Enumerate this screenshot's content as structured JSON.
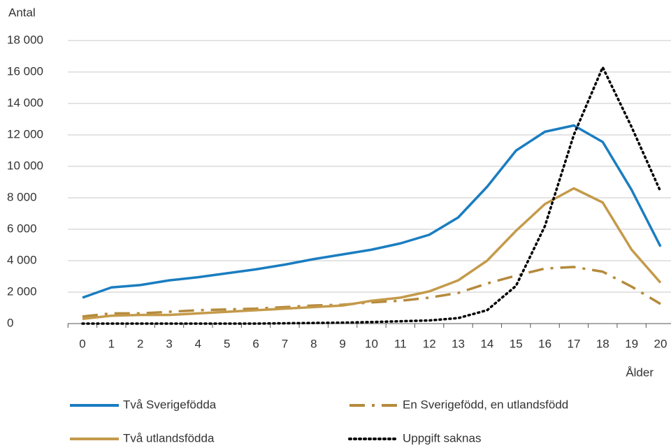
{
  "chart_data": {
    "type": "line",
    "ylabel": "Antal",
    "xlabel": "Ålder",
    "x": [
      0,
      1,
      2,
      3,
      4,
      5,
      6,
      7,
      8,
      9,
      10,
      11,
      12,
      13,
      14,
      15,
      16,
      17,
      18,
      19,
      20
    ],
    "xlim": [
      0,
      20
    ],
    "ylim": [
      0,
      18000
    ],
    "yticks": [
      0,
      {
        "value": 2000,
        "label": "2 000"
      },
      {
        "value": 4000,
        "label": "4 000"
      },
      {
        "value": 6000,
        "label": "6 000"
      },
      {
        "value": 8000,
        "label": "8 000"
      },
      {
        "value": 10000,
        "label": "10 000"
      },
      {
        "value": 12000,
        "label": "12 000"
      },
      {
        "value": 14000,
        "label": "14 000"
      },
      {
        "value": 16000,
        "label": "16 000"
      },
      {
        "value": 18000,
        "label": "18 000"
      }
    ],
    "grid": true,
    "legend": "bottom",
    "series": [
      {
        "name": "Två Sverigefödda",
        "color": "#1a7dc0",
        "style": "solid",
        "values": [
          1650,
          2300,
          2450,
          2750,
          2950,
          3200,
          3450,
          3750,
          4100,
          4400,
          4700,
          5100,
          5650,
          6750,
          8700,
          11000,
          12200,
          12600,
          11550,
          8500,
          4900
        ]
      },
      {
        "name": "En Sverigefödd, en utlandsfödd",
        "color": "#b58a3c",
        "style": "dashdot",
        "values": [
          450,
          650,
          650,
          750,
          850,
          900,
          950,
          1050,
          1150,
          1200,
          1350,
          1450,
          1650,
          1950,
          2550,
          3050,
          3500,
          3600,
          3300,
          2350,
          1250
        ]
      },
      {
        "name": "Två utlandsfödda",
        "color": "#c49a4a",
        "style": "solid",
        "values": [
          300,
          500,
          550,
          550,
          650,
          750,
          850,
          950,
          1050,
          1150,
          1450,
          1650,
          2050,
          2750,
          4000,
          5900,
          7600,
          8600,
          7700,
          4700,
          2600
        ]
      },
      {
        "name": "Uppgift saknas",
        "color": "#000000",
        "style": "dotted",
        "values": [
          0,
          0,
          0,
          0,
          0,
          0,
          0,
          20,
          40,
          60,
          100,
          150,
          200,
          350,
          850,
          2400,
          6200,
          12000,
          16300,
          12500,
          8400
        ]
      }
    ]
  }
}
